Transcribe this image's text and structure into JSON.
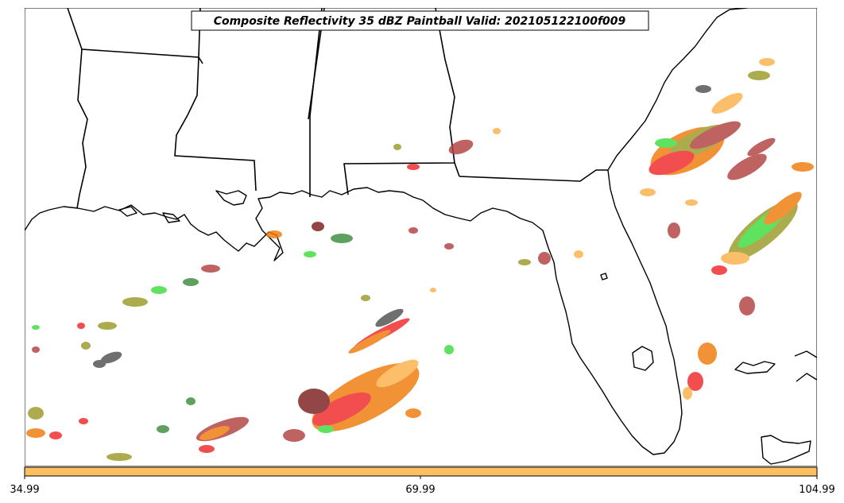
{
  "title": "Composite Reflectivity 35 dBZ Paintball Valid: 202105122100f009",
  "colorbar": {
    "color": "#FDBF5F",
    "tick_labels": [
      "34.99",
      "69.99",
      "104.99"
    ]
  },
  "colors": {
    "paint_red": "#F0282A",
    "paint_orange": "#F07A0A",
    "paint_light_orange": "#FDB04A",
    "paint_green": "#3CDC3C",
    "paint_dark_green": "#3C8C3C",
    "paint_olive": "#9A9A28",
    "paint_brown": "#B04040",
    "paint_dark_red": "#7A1E1E",
    "paint_gray": "#505050",
    "coastline": "#000000"
  }
}
